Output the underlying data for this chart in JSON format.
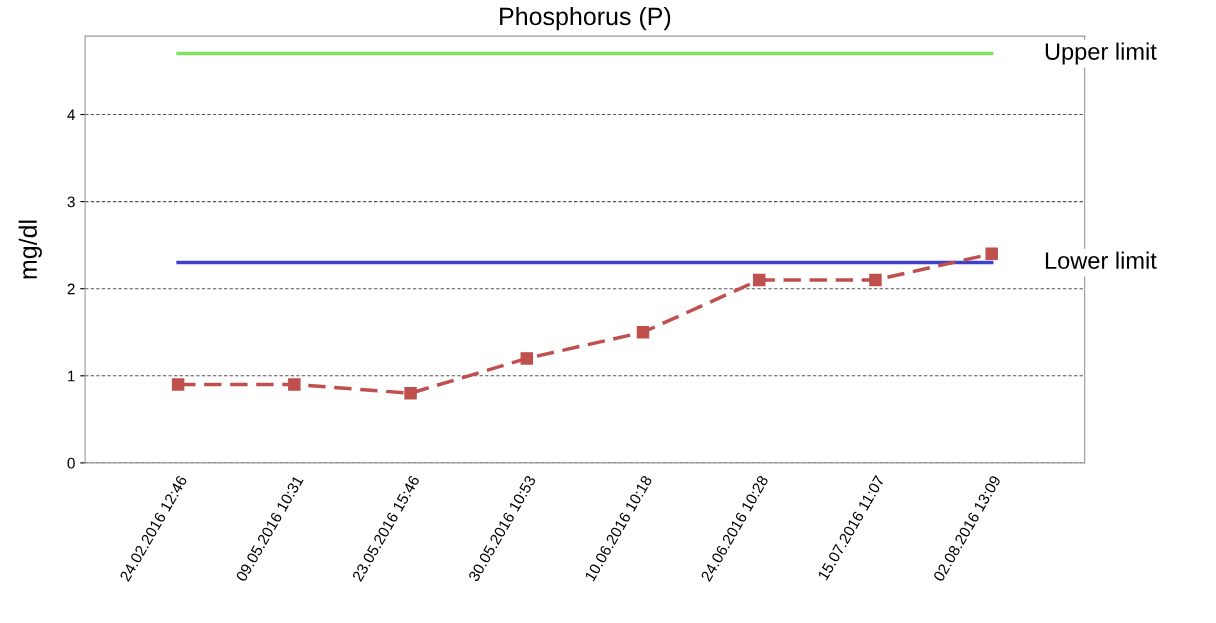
{
  "chart_data": {
    "type": "line",
    "title": "Phosphorus (P)",
    "ylabel": "mg/dl",
    "categories": [
      "24.02.2016 12:46",
      "09.05.2016 10:31",
      "23.05.2016 15:46",
      "30.05.2016 10:53",
      "10.06.2016 10:18",
      "24.06.2016 10:28",
      "15.07.2016 11:07",
      "02.08.2016 13:09"
    ],
    "series": [
      {
        "color": "#c0504d",
        "values": [
          0.9,
          0.9,
          0.8,
          1.2,
          1.5,
          2.1,
          2.1,
          2.4
        ]
      }
    ],
    "ylim": [
      0,
      4.9
    ],
    "yticks": [
      0,
      1,
      2,
      3,
      4
    ],
    "grid": "y",
    "marker": "square",
    "line_style": "dashed",
    "legend": false,
    "ref_lines": [
      {
        "axis": "y",
        "value": 4.7,
        "label": "Upper limit",
        "color": "#80e060"
      },
      {
        "axis": "y",
        "value": 2.3,
        "label": "Lower limit",
        "color": "#4040c8"
      }
    ]
  }
}
